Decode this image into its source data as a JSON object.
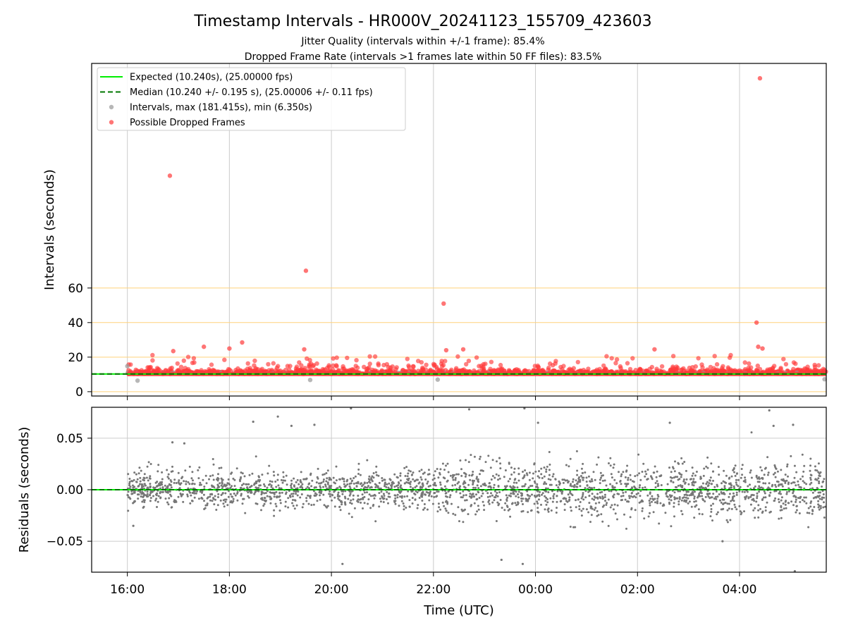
{
  "chart_data": [
    {
      "type": "scatter",
      "title": "Timestamp Intervals - HR000V_20241123_155709_423603",
      "subtitle_lines": [
        "Jitter Quality (intervals within +/-1 frame): 85.4%",
        "Dropped Frame Rate (intervals >1 frames late within 50 FF files): 83.5%"
      ],
      "xlabel": "",
      "ylabel": "Intervals (seconds)",
      "x_range_hours_utc": [
        "15:18",
        "05:42"
      ],
      "ylim": [
        -2.5,
        190
      ],
      "yticks": [
        0,
        20,
        40,
        60
      ],
      "ytick_labels": [
        "0",
        "20",
        "40",
        "60"
      ],
      "reference_lines": [
        0,
        20,
        40,
        60
      ],
      "reference_line_color": "#ffd27a",
      "grid_x": true,
      "legend": {
        "placement": "top-left",
        "entries": [
          {
            "label": "Expected (10.240s), (25.00000 fps)",
            "style": "solid-line",
            "color": "#00ee00"
          },
          {
            "label": "Median (10.240 +/- 0.195 s), (25.00006 +/- 0.11 fps)",
            "style": "dashed-line",
            "color": "#007700"
          },
          {
            "label": "Intervals, max (181.415s), min (6.350s)",
            "style": "marker",
            "color": "#999999"
          },
          {
            "label": "Possible Dropped Frames",
            "style": "marker",
            "color": "#ff3b3b"
          }
        ]
      },
      "expected_interval": 10.24,
      "median_interval": 10.24,
      "series": [
        {
          "name": "Possible Dropped Frames",
          "color": "#ff3b3b",
          "points": [
            {
              "x": "16:50",
              "y": 125.0
            },
            {
              "x": "19:30",
              "y": 70.0
            },
            {
              "x": "22:12",
              "y": 51.0
            },
            {
              "x": "04:20",
              "y": 40.0
            },
            {
              "x": "04:24",
              "y": 181.4
            },
            {
              "x": "18:15",
              "y": 28.5
            },
            {
              "x": "19:28",
              "y": 24.5
            },
            {
              "x": "16:54",
              "y": 23.5
            },
            {
              "x": "22:15",
              "y": 24.0
            },
            {
              "x": "22:35",
              "y": 24.5
            },
            {
              "x": "04:22",
              "y": 26.0
            },
            {
              "x": "02:20",
              "y": 24.5
            },
            {
              "x": "17:30",
              "y": 26.0
            },
            {
              "x": "18:00",
              "y": 25.0
            },
            {
              "x": "04:27",
              "y": 25.0
            }
          ]
        },
        {
          "name": "Intervals, max (181.415s), min (6.350s)",
          "color": "#999999",
          "points": [
            {
              "x": "16:00",
              "y": 14.8
            },
            {
              "x": "16:12",
              "y": 6.4
            },
            {
              "x": "22:05",
              "y": 7.0
            },
            {
              "x": "19:35",
              "y": 6.8
            },
            {
              "x": "05:40",
              "y": 7.2
            }
          ]
        }
      ]
    },
    {
      "type": "scatter",
      "xlabel": "Time (UTC)",
      "ylabel": "Residuals (seconds)",
      "xticks": [
        "16:00",
        "18:00",
        "20:00",
        "22:00",
        "00:00",
        "02:00",
        "04:00"
      ],
      "x_range_hours_utc": [
        "15:18",
        "05:42"
      ],
      "ylim": [
        -0.08,
        0.08
      ],
      "yticks": [
        -0.05,
        0.0,
        0.05
      ],
      "ytick_labels": [
        "−0.05",
        "0.00",
        "0.05"
      ],
      "grid": true,
      "zero_line_colors": [
        "#00ee00",
        "#007700"
      ],
      "series": [
        {
          "name": "",
          "color": "#777777",
          "points": [
            {
              "x": "16:53",
              "y": 0.046
            },
            {
              "x": "17:07",
              "y": 0.045
            },
            {
              "x": "18:28",
              "y": 0.066
            },
            {
              "x": "18:57",
              "y": 0.071
            },
            {
              "x": "19:13",
              "y": 0.062
            },
            {
              "x": "19:40",
              "y": 0.063
            },
            {
              "x": "20:13",
              "y": -0.072
            },
            {
              "x": "20:23",
              "y": 0.079
            },
            {
              "x": "22:42",
              "y": 0.078
            },
            {
              "x": "23:20",
              "y": -0.068
            },
            {
              "x": "23:45",
              "y": -0.072
            },
            {
              "x": "23:47",
              "y": 0.079
            },
            {
              "x": "00:03",
              "y": 0.065
            },
            {
              "x": "02:38",
              "y": 0.065
            },
            {
              "x": "04:35",
              "y": 0.077
            },
            {
              "x": "04:40",
              "y": 0.062
            },
            {
              "x": "05:03",
              "y": 0.063
            },
            {
              "x": "05:05",
              "y": -0.079
            },
            {
              "x": "03:40",
              "y": -0.05
            },
            {
              "x": "16:07",
              "y": -0.035
            }
          ]
        }
      ]
    }
  ]
}
